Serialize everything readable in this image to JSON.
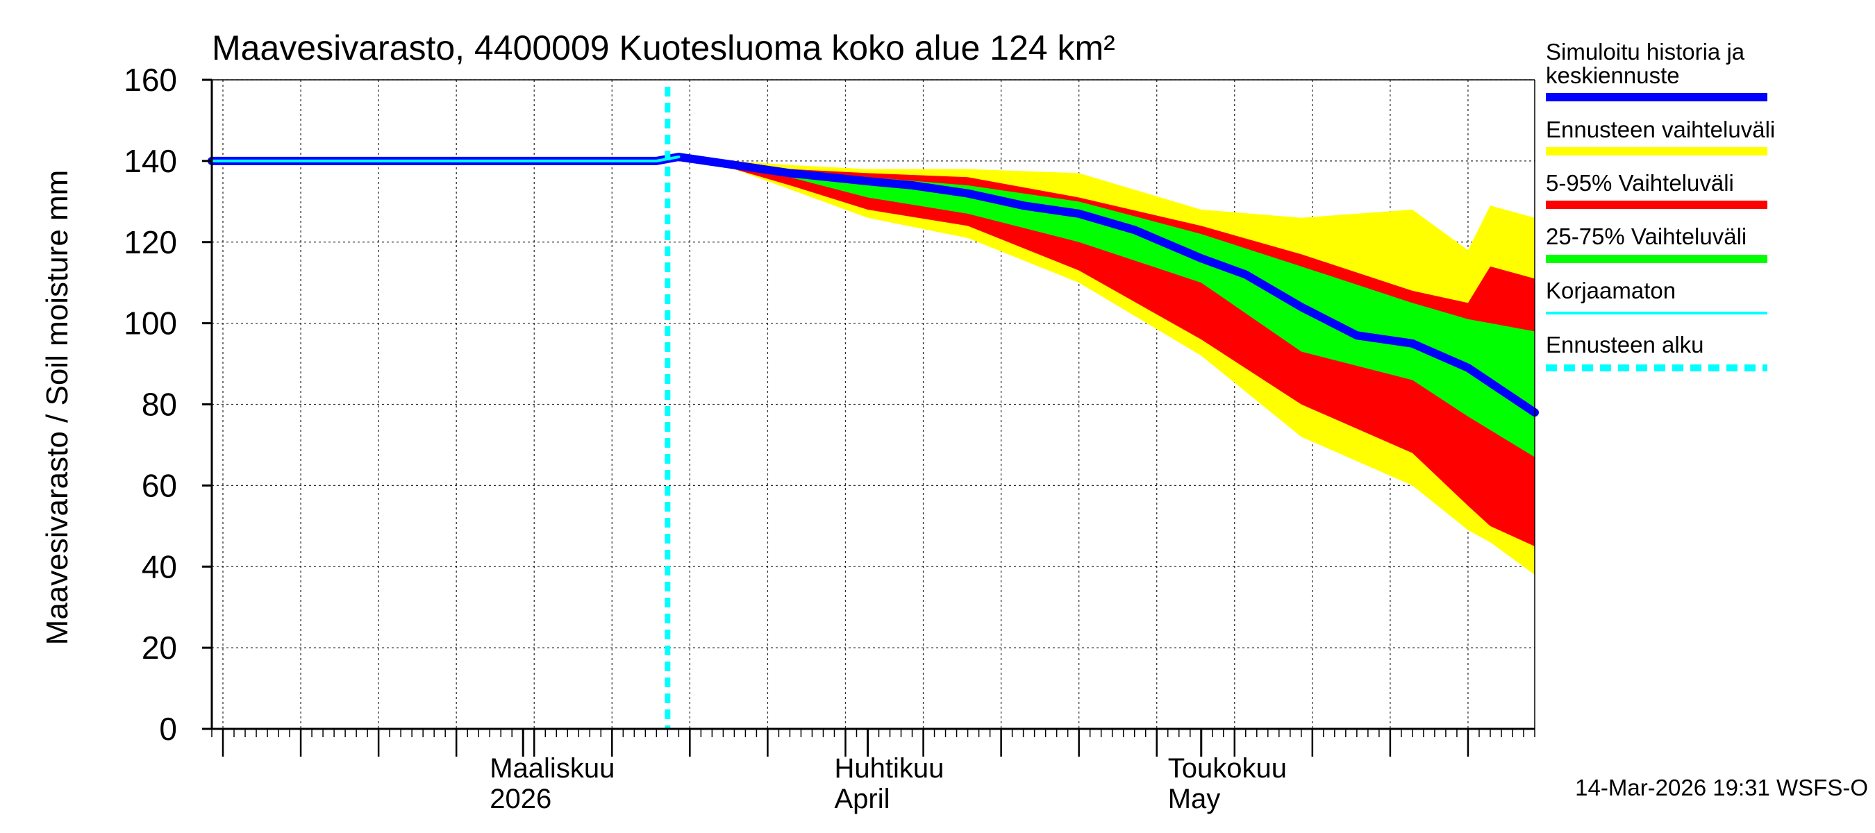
{
  "chart_data": {
    "type": "area",
    "title": "Maavesivarasto, 4400009 Kuotesluoma koko alue 124 km²",
    "ylabel": "Maavesivarasto / Soil moisture   mm",
    "xlabel": "",
    "ylim": [
      0,
      160
    ],
    "yticks": [
      0,
      20,
      40,
      60,
      80,
      100,
      120,
      140,
      160
    ],
    "x_start": "2026-02-01",
    "x_end": "2026-05-31",
    "forecast_start": "2026-03-14",
    "grid": true,
    "month_labels": [
      {
        "date": "2026-03-01",
        "line1": "Maaliskuu",
        "line2": "2026"
      },
      {
        "date": "2026-04-01",
        "line1": "Huhtikuu",
        "line2": "April"
      },
      {
        "date": "2026-05-01",
        "line1": "Toukokuu",
        "line2": "May"
      }
    ],
    "legend_position": "right",
    "legend": [
      {
        "label": "Simuloitu historia ja",
        "label2": "keskiennuste",
        "color": "#0000ff",
        "style": "thick"
      },
      {
        "label": "Ennusteen vaihteluväli",
        "label2": "",
        "color": "#ffff00",
        "style": "thick"
      },
      {
        "label": "5-95% Vaihteluväli",
        "label2": "",
        "color": "#ff0000",
        "style": "thick"
      },
      {
        "label": "25-75% Vaihteluväli",
        "label2": "",
        "color": "#00ff00",
        "style": "thick"
      },
      {
        "label": "Korjaamaton",
        "label2": "",
        "color": "#00ffff",
        "style": "thin"
      },
      {
        "label": "Ennusteen alku",
        "label2": "",
        "color": "#00ffff",
        "style": "dashed"
      }
    ],
    "series": [
      {
        "name": "Simuloitu historia ja keskiennuste",
        "color": "#0000ff",
        "x": [
          "2026-02-01",
          "2026-03-13",
          "2026-03-15",
          "2026-03-20",
          "2026-03-25",
          "2026-04-01",
          "2026-04-05",
          "2026-04-10",
          "2026-04-15",
          "2026-04-20",
          "2026-04-25",
          "2026-05-01",
          "2026-05-05",
          "2026-05-10",
          "2026-05-15",
          "2026-05-20",
          "2026-05-25",
          "2026-05-31"
        ],
        "y": [
          140,
          140,
          141,
          139,
          137,
          135,
          134,
          132,
          129,
          127,
          123,
          116,
          112,
          104,
          97,
          95,
          89,
          78
        ]
      },
      {
        "name": "Korjaamaton",
        "color": "#00ffff",
        "x": [
          "2026-02-01",
          "2026-03-13",
          "2026-03-15"
        ],
        "y": [
          140,
          140,
          141
        ]
      }
    ],
    "bands": [
      {
        "name": "Ennusteen vaihteluväli",
        "color": "#ffff00",
        "x": [
          "2026-03-15",
          "2026-03-20",
          "2026-03-25",
          "2026-04-01",
          "2026-04-10",
          "2026-04-20",
          "2026-05-01",
          "2026-05-10",
          "2026-05-20",
          "2026-05-25",
          "2026-05-27",
          "2026-05-31"
        ],
        "upper": [
          141,
          140,
          139,
          138,
          138,
          137,
          128,
          126,
          128,
          118,
          129,
          126
        ],
        "lower": [
          141,
          138,
          133,
          126,
          121,
          110,
          92,
          72,
          60,
          49,
          46,
          38
        ]
      },
      {
        "name": "5-95% Vaihteluväli",
        "color": "#ff0000",
        "x": [
          "2026-03-15",
          "2026-03-20",
          "2026-03-25",
          "2026-04-01",
          "2026-04-10",
          "2026-04-20",
          "2026-05-01",
          "2026-05-10",
          "2026-05-20",
          "2026-05-25",
          "2026-05-27",
          "2026-05-31"
        ],
        "upper": [
          141,
          140,
          138,
          137,
          136,
          131,
          124,
          117,
          108,
          105,
          114,
          111
        ],
        "lower": [
          141,
          138,
          134,
          128,
          124,
          113,
          96,
          80,
          68,
          55,
          50,
          45
        ]
      },
      {
        "name": "25-75% Vaihteluväli",
        "color": "#00ff00",
        "x": [
          "2026-03-15",
          "2026-03-20",
          "2026-03-25",
          "2026-04-01",
          "2026-04-10",
          "2026-04-20",
          "2026-05-01",
          "2026-05-10",
          "2026-05-20",
          "2026-05-25",
          "2026-05-31"
        ],
        "upper": [
          141,
          139,
          138,
          136,
          134,
          130,
          122,
          114,
          105,
          101,
          98
        ],
        "lower": [
          141,
          139,
          136,
          131,
          127,
          120,
          110,
          93,
          86,
          77,
          67
        ]
      }
    ],
    "footer": "14-Mar-2026 19:31 WSFS-O"
  }
}
